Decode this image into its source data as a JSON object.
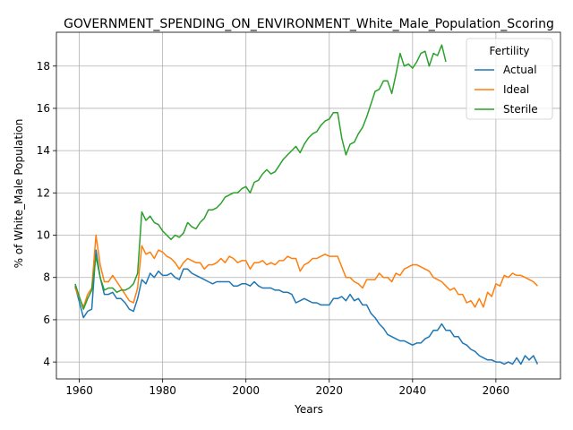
{
  "chart_data": {
    "type": "line",
    "title": "GOVERNMENT_SPENDING_ON_ENVIRONMENT_White_Male_Population_Scoring",
    "xlabel": "Years",
    "ylabel": "% of White_Male Population",
    "xlim": [
      1954.5,
      2075.5
    ],
    "ylim": [
      3.2,
      19.6
    ],
    "xticks": [
      1960,
      1980,
      2000,
      2020,
      2040,
      2060
    ],
    "yticks": [
      4,
      6,
      8,
      10,
      12,
      14,
      16,
      18
    ],
    "grid": true,
    "legend": {
      "title": "Fertility",
      "placement": "top-right"
    },
    "series": [
      {
        "name": "Actual",
        "color": "#1f77b4",
        "x": [
          1959,
          1961,
          1962,
          1963,
          1964,
          1965,
          1966,
          1967,
          1968,
          1969,
          1970,
          1971,
          1972,
          1973,
          1974,
          1975,
          1976,
          1977,
          1978,
          1979,
          1980,
          1981,
          1982,
          1983,
          1984,
          1985,
          1986,
          1987,
          1988,
          1989,
          1990,
          1991,
          1992,
          1993,
          1994,
          1995,
          1996,
          1997,
          1998,
          1999,
          2000,
          2001,
          2002,
          2003,
          2004,
          2005,
          2006,
          2007,
          2008,
          2009,
          2010,
          2011,
          2012,
          2013,
          2014,
          2015,
          2016,
          2017,
          2018,
          2019,
          2020,
          2021,
          2022,
          2023,
          2024,
          2025,
          2026,
          2027,
          2028,
          2029,
          2030,
          2031,
          2032,
          2033,
          2034,
          2035,
          2036,
          2037,
          2038,
          2039,
          2040,
          2041,
          2042,
          2043,
          2044,
          2045,
          2046,
          2047,
          2048,
          2049,
          2050,
          2051,
          2052,
          2053,
          2054,
          2055,
          2056,
          2057,
          2058,
          2059,
          2060,
          2061,
          2062,
          2063,
          2064,
          2065,
          2066,
          2067,
          2068,
          2069,
          2070
        ],
        "y": [
          7.6,
          6.1,
          6.4,
          6.5,
          9.3,
          8.0,
          7.2,
          7.2,
          7.3,
          7.0,
          7.0,
          6.8,
          6.5,
          6.4,
          7.0,
          7.9,
          7.7,
          8.2,
          8.0,
          8.3,
          8.1,
          8.1,
          8.2,
          8.0,
          7.9,
          8.4,
          8.4,
          8.2,
          8.1,
          8.0,
          7.9,
          7.8,
          7.7,
          7.8,
          7.8,
          7.8,
          7.8,
          7.6,
          7.6,
          7.7,
          7.7,
          7.6,
          7.8,
          7.6,
          7.5,
          7.5,
          7.5,
          7.4,
          7.4,
          7.3,
          7.3,
          7.2,
          6.8,
          6.9,
          7.0,
          6.9,
          6.8,
          6.8,
          6.7,
          6.7,
          6.7,
          7.0,
          7.0,
          7.1,
          6.9,
          7.2,
          6.9,
          7.0,
          6.7,
          6.7,
          6.3,
          6.1,
          5.8,
          5.6,
          5.3,
          5.2,
          5.1,
          5.0,
          5.0,
          4.9,
          4.8,
          4.9,
          4.9,
          5.1,
          5.2,
          5.5,
          5.5,
          5.8,
          5.5,
          5.5,
          5.2,
          5.2,
          4.9,
          4.8,
          4.6,
          4.5,
          4.3,
          4.2,
          4.1,
          4.1,
          4.0,
          4.0,
          3.9,
          4.0,
          3.9,
          4.2,
          3.9,
          4.3,
          4.1,
          4.3,
          3.9
        ]
      },
      {
        "name": "Ideal",
        "color": "#ff7f0e",
        "x": [
          1959,
          1961,
          1962,
          1963,
          1964,
          1965,
          1966,
          1967,
          1968,
          1969,
          1970,
          1971,
          1972,
          1973,
          1974,
          1975,
          1976,
          1977,
          1978,
          1979,
          1980,
          1981,
          1982,
          1983,
          1984,
          1985,
          1986,
          1987,
          1988,
          1989,
          1990,
          1991,
          1992,
          1993,
          1994,
          1995,
          1996,
          1997,
          1998,
          1999,
          2000,
          2001,
          2002,
          2003,
          2004,
          2005,
          2006,
          2007,
          2008,
          2009,
          2010,
          2011,
          2012,
          2013,
          2014,
          2015,
          2016,
          2017,
          2018,
          2019,
          2020,
          2021,
          2022,
          2023,
          2024,
          2025,
          2026,
          2027,
          2028,
          2029,
          2030,
          2031,
          2032,
          2033,
          2034,
          2035,
          2036,
          2037,
          2038,
          2039,
          2040,
          2041,
          2042,
          2043,
          2044,
          2045,
          2046,
          2047,
          2048,
          2049,
          2050,
          2051,
          2052,
          2053,
          2054,
          2055,
          2056,
          2057,
          2058,
          2059,
          2060,
          2061,
          2062,
          2063,
          2064,
          2065,
          2066,
          2067,
          2068,
          2069,
          2070
        ],
        "y": [
          7.5,
          6.6,
          7.2,
          7.5,
          10.0,
          8.6,
          7.8,
          7.8,
          8.1,
          7.8,
          7.5,
          7.2,
          6.9,
          6.8,
          7.5,
          9.5,
          9.1,
          9.2,
          8.9,
          9.3,
          9.2,
          9.0,
          8.9,
          8.7,
          8.4,
          8.7,
          8.9,
          8.8,
          8.7,
          8.7,
          8.4,
          8.6,
          8.6,
          8.7,
          8.9,
          8.7,
          9.0,
          8.9,
          8.7,
          8.8,
          8.8,
          8.4,
          8.7,
          8.7,
          8.8,
          8.6,
          8.7,
          8.6,
          8.8,
          8.8,
          9.0,
          8.9,
          8.9,
          8.3,
          8.6,
          8.7,
          8.9,
          8.9,
          9.0,
          9.1,
          9.0,
          9.0,
          9.0,
          8.5,
          8.0,
          8.0,
          7.8,
          7.7,
          7.5,
          7.9,
          7.9,
          7.9,
          8.2,
          8.0,
          8.0,
          7.8,
          8.2,
          8.1,
          8.4,
          8.5,
          8.6,
          8.6,
          8.5,
          8.4,
          8.3,
          8.0,
          7.9,
          7.8,
          7.6,
          7.4,
          7.5,
          7.2,
          7.2,
          6.8,
          6.9,
          6.6,
          7.0,
          6.6,
          7.3,
          7.1,
          7.7,
          7.6,
          8.1,
          8.0,
          8.2,
          8.1,
          8.1,
          8.0,
          7.9,
          7.8,
          7.6
        ]
      },
      {
        "name": "Sterile",
        "color": "#2ca02c",
        "x": [
          1959,
          1961,
          1962,
          1963,
          1964,
          1965,
          1966,
          1967,
          1968,
          1969,
          1970,
          1971,
          1972,
          1973,
          1974,
          1975,
          1976,
          1977,
          1978,
          1979,
          1980,
          1981,
          1982,
          1983,
          1984,
          1985,
          1986,
          1987,
          1988,
          1989,
          1990,
          1991,
          1992,
          1993,
          1994,
          1995,
          1996,
          1997,
          1998,
          1999,
          2000,
          2001,
          2002,
          2003,
          2004,
          2005,
          2006,
          2007,
          2008,
          2009,
          2010,
          2011,
          2012,
          2013,
          2014,
          2015,
          2016,
          2017,
          2018,
          2019,
          2020,
          2021,
          2022,
          2023,
          2024,
          2025,
          2026,
          2027,
          2028,
          2029,
          2030,
          2031,
          2032,
          2033,
          2034,
          2035,
          2036,
          2037,
          2038,
          2039,
          2040,
          2041,
          2042,
          2043,
          2044,
          2045,
          2046,
          2047,
          2048
        ],
        "y": [
          7.7,
          6.5,
          7.0,
          7.4,
          9.0,
          8.0,
          7.4,
          7.5,
          7.5,
          7.3,
          7.4,
          7.4,
          7.5,
          7.7,
          8.2,
          11.1,
          10.7,
          10.9,
          10.6,
          10.5,
          10.2,
          10.0,
          9.8,
          10.0,
          9.9,
          10.1,
          10.6,
          10.4,
          10.3,
          10.6,
          10.8,
          11.2,
          11.2,
          11.3,
          11.5,
          11.8,
          11.9,
          12.0,
          12.0,
          12.2,
          12.3,
          12.0,
          12.5,
          12.6,
          12.9,
          13.1,
          12.9,
          13.0,
          13.3,
          13.6,
          13.8,
          14.0,
          14.2,
          13.9,
          14.3,
          14.6,
          14.8,
          14.9,
          15.2,
          15.4,
          15.5,
          15.8,
          15.8,
          14.6,
          13.8,
          14.3,
          14.4,
          14.8,
          15.1,
          15.6,
          16.2,
          16.8,
          16.9,
          17.3,
          17.3,
          16.7,
          17.6,
          18.6,
          18.0,
          18.1,
          17.9,
          18.2,
          18.6,
          18.7,
          18.0,
          18.6,
          18.5,
          19.0,
          18.2
        ]
      }
    ]
  }
}
